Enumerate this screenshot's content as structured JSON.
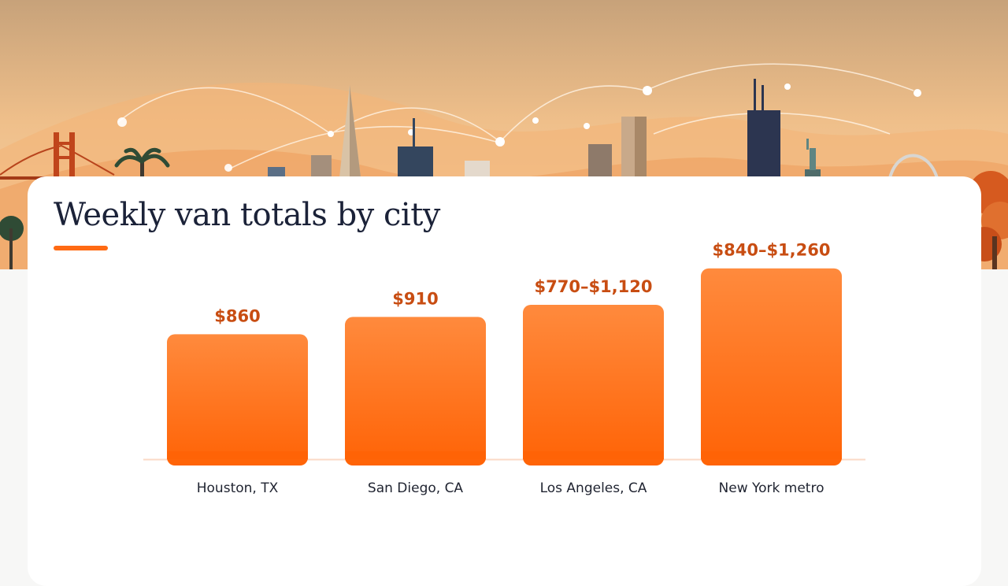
{
  "page": {
    "title": "Weekly van totals by city",
    "accent_color": "#ff6a13",
    "hero_icons": [
      "golden-gate-bridge-icon",
      "palm-tree-icon",
      "transamerica-pyramid-icon",
      "skyscraper-icon",
      "willis-tower-icon",
      "statue-of-liberty-icon",
      "gateway-arch-icon",
      "autumn-tree-icon"
    ]
  },
  "chart_data": {
    "type": "bar",
    "title": "Weekly van totals by city",
    "xlabel": "",
    "ylabel": "",
    "categories": [
      "Houston, TX",
      "San Diego, CA",
      "Los Angeles, CA",
      "New York metro"
    ],
    "values": [
      860,
      910,
      945,
      1050
    ],
    "value_labels": [
      "$860",
      "$910",
      "$770–$1,120",
      "$840–$1,260"
    ],
    "ranges": [
      null,
      null,
      [
        770,
        1120
      ],
      [
        840,
        1260
      ]
    ],
    "bar_color_top": "#ff8a3d",
    "bar_color_bottom": "#ff6306",
    "label_color": "#c84d12",
    "grid": false,
    "legend": "none"
  }
}
